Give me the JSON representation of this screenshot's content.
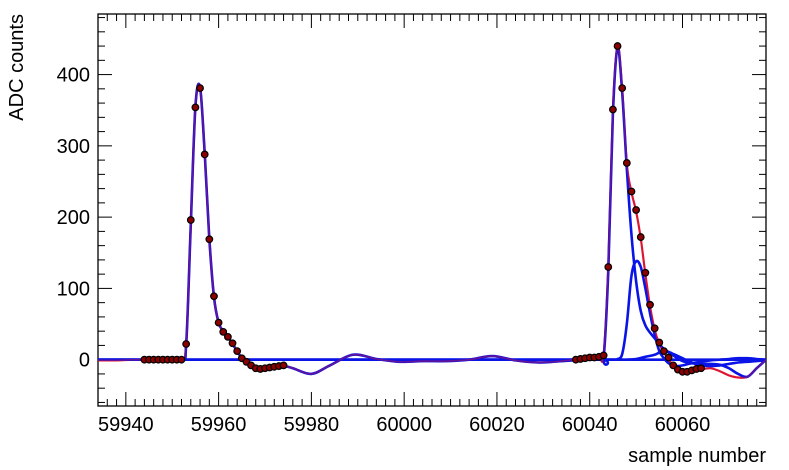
{
  "chart_data": {
    "type": "line",
    "title": "",
    "xlabel": "sample number",
    "ylabel": "ADC counts",
    "xlim": [
      59934,
      60078
    ],
    "ylim": [
      -65,
      485
    ],
    "x_ticks": [
      59940,
      59960,
      59980,
      60000,
      60020,
      60040,
      60060
    ],
    "y_ticks": [
      0,
      100,
      200,
      300,
      400
    ],
    "grid": false,
    "legend": "none",
    "colors": {
      "points_fill": "#8b0000",
      "points_stroke": "#000000",
      "fit_total": "#ff1a1a",
      "components": "#0a14e6",
      "overlap": "#b0125a"
    },
    "series": [
      {
        "kind": "points",
        "x": [
          59944,
          59945,
          59946,
          59947,
          59948,
          59949,
          59950,
          59951,
          59952,
          59953,
          59954,
          59955,
          59956,
          59957,
          59958,
          59959,
          59960,
          59961,
          59962,
          59963,
          59964,
          59965,
          59966,
          59967,
          59968,
          59969,
          59970,
          59971,
          59972,
          59973,
          59974
        ],
        "y": [
          0,
          0,
          0,
          0,
          0,
          0,
          0,
          0,
          0,
          22,
          196,
          354,
          381,
          288,
          169,
          89,
          52,
          39,
          32,
          23,
          12,
          2,
          -3,
          -8,
          -12,
          -13,
          -12,
          -11,
          -10,
          -9,
          -8
        ]
      },
      {
        "kind": "points",
        "x": [
          60037,
          60038,
          60039,
          60040,
          60041,
          60042,
          60043,
          60044,
          60045,
          60046,
          60047,
          60048,
          60049,
          60050,
          60051,
          60052,
          60053,
          60054,
          60055,
          60056,
          60057,
          60058,
          60059,
          60060,
          60061,
          60062,
          60063,
          60064
        ],
        "y": [
          0,
          1,
          2,
          3,
          3,
          4,
          6,
          130,
          351,
          440,
          381,
          276,
          236,
          210,
          172,
          122,
          77,
          44,
          24,
          12,
          3,
          -8,
          -14,
          -17,
          -17,
          -15,
          -13,
          -12
        ]
      },
      {
        "kind": "fit_total",
        "x": [
          59934,
          59938,
          59942,
          59946,
          59950,
          59952,
          59953,
          59954,
          59955,
          59956,
          59957,
          59958,
          59959,
          59960,
          59961,
          59962,
          59963,
          59964,
          59965,
          59966,
          59967,
          59968,
          59970,
          59972,
          59974,
          59976,
          59980,
          59984,
          59989,
          59994,
          59999,
          60004,
          60009,
          60014,
          60019,
          60024,
          60029,
          60034,
          60038,
          60040,
          60042,
          60043,
          60044,
          60045,
          60046,
          60047,
          60048,
          60049,
          60050,
          60051,
          60052,
          60053,
          60054,
          60055,
          60056,
          60057,
          60058,
          60059,
          60060,
          60061,
          60062,
          60063,
          60064,
          60066,
          60068,
          60070,
          60072,
          60074,
          60076,
          60078
        ],
        "y": [
          -1,
          -1,
          0,
          0,
          0,
          1,
          20,
          190,
          355,
          382,
          290,
          170,
          88,
          52,
          40,
          32,
          22,
          12,
          2,
          -3,
          -8,
          -12,
          -14,
          -12,
          -9,
          -12,
          -20,
          -8,
          7,
          1,
          -3,
          -2,
          -2,
          0,
          5,
          -1,
          -4,
          -2,
          1,
          2,
          4,
          7,
          130,
          350,
          440,
          380,
          275,
          235,
          208,
          170,
          120,
          75,
          42,
          22,
          10,
          0,
          -8,
          -14,
          -17,
          -18,
          -16,
          -15,
          -14,
          -12,
          -16,
          -22,
          -25,
          -24,
          -12,
          0
        ]
      },
      {
        "kind": "component",
        "x": [
          59934,
          59940,
          59946,
          59952,
          59953,
          59954,
          59955,
          59956,
          59957,
          59958,
          59959,
          59960,
          59961,
          59962,
          59963,
          59964,
          59965,
          59966,
          59967,
          59968,
          59970,
          59972,
          59974,
          59976,
          59980,
          59984,
          59989,
          59994,
          59999,
          60004,
          60009,
          60014,
          60019,
          60024,
          60029,
          60034,
          60040,
          60050,
          60060,
          60070,
          60078
        ],
        "y": [
          0,
          0,
          0,
          1,
          20,
          190,
          355,
          382,
          290,
          170,
          88,
          52,
          40,
          32,
          22,
          12,
          2,
          -3,
          -8,
          -12,
          -14,
          -12,
          -9,
          -12,
          -20,
          -8,
          7,
          1,
          -3,
          -2,
          -2,
          0,
          5,
          -1,
          -4,
          -2,
          0,
          0,
          0,
          0,
          0
        ]
      },
      {
        "kind": "component",
        "x": [
          59934,
          59960,
          59990,
          60020,
          60042,
          60043,
          60044,
          60045,
          60046,
          60047,
          60048,
          60049,
          60050,
          60051,
          60052,
          60053,
          60054,
          60055,
          60056,
          60058,
          60060,
          60062,
          60064,
          60066,
          60068,
          60070,
          60072,
          60074,
          60076,
          60078
        ],
        "y": [
          0,
          0,
          0,
          0,
          0,
          3,
          125,
          345,
          438,
          375,
          268,
          175,
          110,
          68,
          48,
          38,
          30,
          22,
          15,
          6,
          -2,
          -5,
          -6,
          -6,
          -7,
          -12,
          -20,
          -24,
          -12,
          0
        ]
      },
      {
        "kind": "component",
        "x": [
          59934,
          59990,
          60040,
          60045,
          60046,
          60047,
          60048,
          60049,
          60050,
          60051,
          60052,
          60053,
          60054,
          60055,
          60056,
          60057,
          60058,
          60059,
          60060,
          60062,
          60064,
          60066,
          60068,
          60070,
          60072,
          60074,
          60076,
          60078
        ],
        "y": [
          0,
          0,
          0,
          0,
          1,
          8,
          50,
          118,
          138,
          130,
          100,
          65,
          35,
          12,
          2,
          -5,
          -8,
          -9,
          -8,
          -5,
          -3,
          -1,
          0,
          1,
          2,
          2,
          1,
          0
        ]
      },
      {
        "kind": "component",
        "x": [
          59934,
          59990,
          60040,
          60046,
          60048,
          60050,
          60052,
          60054,
          60055,
          60056,
          60057,
          60058,
          60060,
          60062,
          60064,
          60066,
          60068,
          60070,
          60072,
          60074,
          60076,
          60078
        ],
        "y": [
          0,
          0,
          0,
          0,
          0,
          1,
          4,
          7,
          10,
          12,
          11,
          8,
          2,
          -4,
          -8,
          -9,
          -8,
          -6,
          -4,
          -3,
          -2,
          -1
        ]
      }
    ]
  }
}
